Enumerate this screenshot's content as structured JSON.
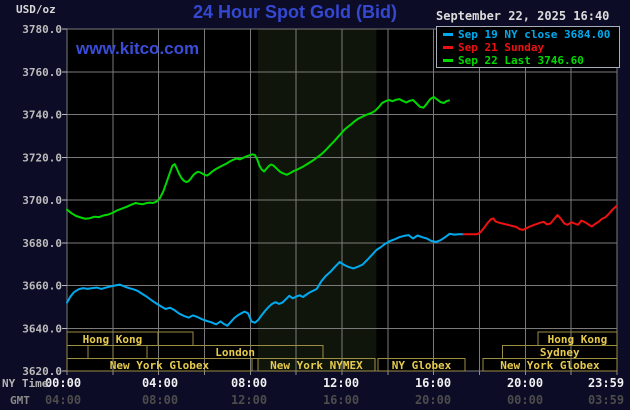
{
  "header": {
    "unit": "USD/oz",
    "title": "24 Hour Spot Gold (Bid)",
    "datetime": "September 22, 2025 16:40",
    "watermark": "www.kitco.com"
  },
  "legend": {
    "items": [
      {
        "text": "Sep 19 NY close 3684.00",
        "color": "#00aaee"
      },
      {
        "text": "Sep 21 Sunday",
        "color": "#ee1111"
      },
      {
        "text": "Sep 22 Last 3746.60",
        "color": "#00d900"
      }
    ]
  },
  "colors": {
    "background": "#0c0c26",
    "plot_background": "#000000",
    "grid": "#7a7a7a",
    "shaded_band": "#10150c",
    "session_border": "#9b8d42",
    "session_text": "#e6cb4f",
    "y_label": "#bcbcbc",
    "ny_tick_label": "#f0f0f0",
    "gmt_tick_label": "#4c4c4c",
    "title_blue": "#3448d2"
  },
  "chart_data": {
    "type": "line",
    "title": "24 Hour Spot Gold (Bid)",
    "y_axis": {
      "unit": "USD/oz",
      "min": 3620,
      "max": 3780,
      "step": 20,
      "tick_labels": [
        "3780.0",
        "3760.0",
        "3740.0",
        "3720.0",
        "3700.0",
        "3680.0",
        "3660.0",
        "3640.0",
        "3620.0"
      ]
    },
    "x_axis": {
      "hours_range": [
        0,
        24
      ],
      "rows": [
        {
          "label": "NY Time",
          "ticks": [
            "00:00",
            "04:00",
            "08:00",
            "12:00",
            "16:00",
            "20:00",
            "23:59"
          ]
        },
        {
          "label": "GMT",
          "ticks": [
            "04:00",
            "08:00",
            "12:00",
            "16:00",
            "20:00",
            "00:00",
            "03:59"
          ]
        }
      ]
    },
    "shaded_band_hours": [
      8.33,
      13.5
    ],
    "sessions": [
      {
        "row": 0,
        "from": 0.0,
        "to": 3.97,
        "label": "Hong Kong"
      },
      {
        "row": 0,
        "from": 3.97,
        "to": 5.5,
        "label": ""
      },
      {
        "row": 0,
        "from": 20.55,
        "to": 24.0,
        "label": "Hong Kong"
      },
      {
        "row": 1,
        "from": 0.0,
        "to": 0.92,
        "label": ""
      },
      {
        "row": 1,
        "from": 0.92,
        "to": 2.0,
        "label": ""
      },
      {
        "row": 1,
        "from": 2.0,
        "to": 3.5,
        "label": ""
      },
      {
        "row": 1,
        "from": 3.5,
        "to": 11.17,
        "label": "London"
      },
      {
        "row": 1,
        "from": 19.0,
        "to": 24.0,
        "label": "Sydney"
      },
      {
        "row": 2,
        "from": 0.0,
        "to": 8.07,
        "label": "New York Globex"
      },
      {
        "row": 2,
        "from": 8.33,
        "to": 13.44,
        "label": "New York NYMEX"
      },
      {
        "row": 2,
        "from": 13.57,
        "to": 17.37,
        "label": "NY Globex"
      },
      {
        "row": 2,
        "from": 18.15,
        "to": 24.0,
        "label": "New York Globex"
      }
    ],
    "series": [
      {
        "name": "Sep 19 NY close",
        "close_value": 3684.0,
        "color": "#00aaee",
        "points": [
          [
            0,
            3652
          ],
          [
            0.15,
            3654.8
          ],
          [
            0.3,
            3656.8
          ],
          [
            0.5,
            3658.2
          ],
          [
            0.7,
            3658.8
          ],
          [
            0.9,
            3658.4
          ],
          [
            1.1,
            3658.8
          ],
          [
            1.3,
            3659
          ],
          [
            1.5,
            3658.4
          ],
          [
            1.7,
            3659
          ],
          [
            1.9,
            3659.6
          ],
          [
            2.1,
            3660
          ],
          [
            2.3,
            3660.4
          ],
          [
            2.5,
            3659.6
          ],
          [
            2.7,
            3658.8
          ],
          [
            2.9,
            3658.2
          ],
          [
            3.1,
            3657.4
          ],
          [
            3.3,
            3656
          ],
          [
            3.5,
            3654.6
          ],
          [
            3.7,
            3653
          ],
          [
            3.9,
            3651.6
          ],
          [
            4.1,
            3650.2
          ],
          [
            4.3,
            3649
          ],
          [
            4.5,
            3649.6
          ],
          [
            4.7,
            3648.4
          ],
          [
            4.9,
            3646.8
          ],
          [
            5.1,
            3645.8
          ],
          [
            5.3,
            3645
          ],
          [
            5.5,
            3646
          ],
          [
            5.7,
            3645.2
          ],
          [
            5.9,
            3644.2
          ],
          [
            6.1,
            3643.4
          ],
          [
            6.3,
            3642.8
          ],
          [
            6.5,
            3641.8
          ],
          [
            6.7,
            3643.2
          ],
          [
            6.85,
            3642
          ],
          [
            7,
            3641.2
          ],
          [
            7.15,
            3643
          ],
          [
            7.3,
            3644.8
          ],
          [
            7.45,
            3646
          ],
          [
            7.6,
            3647
          ],
          [
            7.75,
            3647.8
          ],
          [
            7.9,
            3647
          ],
          [
            8.05,
            3643.2
          ],
          [
            8.2,
            3642.6
          ],
          [
            8.35,
            3644
          ],
          [
            8.5,
            3646.2
          ],
          [
            8.65,
            3648.2
          ],
          [
            8.8,
            3650
          ],
          [
            8.95,
            3651.4
          ],
          [
            9.1,
            3652.2
          ],
          [
            9.25,
            3651.4
          ],
          [
            9.4,
            3652
          ],
          [
            9.55,
            3653.6
          ],
          [
            9.7,
            3655.2
          ],
          [
            9.85,
            3654
          ],
          [
            10,
            3654.8
          ],
          [
            10.15,
            3655.4
          ],
          [
            10.3,
            3654.6
          ],
          [
            10.45,
            3655.8
          ],
          [
            10.6,
            3656.8
          ],
          [
            10.75,
            3657.6
          ],
          [
            10.9,
            3658.4
          ],
          [
            11.1,
            3662
          ],
          [
            11.3,
            3664.6
          ],
          [
            11.5,
            3666.4
          ],
          [
            11.7,
            3668.8
          ],
          [
            11.9,
            3671
          ],
          [
            12.1,
            3669.6
          ],
          [
            12.3,
            3668.6
          ],
          [
            12.5,
            3668
          ],
          [
            12.7,
            3668.8
          ],
          [
            12.9,
            3669.8
          ],
          [
            13.1,
            3672
          ],
          [
            13.3,
            3674.2
          ],
          [
            13.5,
            3676.6
          ],
          [
            13.7,
            3678
          ],
          [
            13.9,
            3679.6
          ],
          [
            14.1,
            3680.8
          ],
          [
            14.3,
            3681.6
          ],
          [
            14.5,
            3682.6
          ],
          [
            14.7,
            3683.2
          ],
          [
            14.9,
            3683.6
          ],
          [
            15.1,
            3682
          ],
          [
            15.3,
            3683.4
          ],
          [
            15.5,
            3682.6
          ],
          [
            15.7,
            3682
          ],
          [
            15.9,
            3680.8
          ],
          [
            16.1,
            3680.4
          ],
          [
            16.3,
            3681.2
          ],
          [
            16.5,
            3682.6
          ],
          [
            16.7,
            3684.2
          ],
          [
            16.9,
            3683.8
          ],
          [
            17.1,
            3684
          ],
          [
            17.3,
            3684
          ]
        ]
      },
      {
        "name": "Sep 21 Sunday",
        "color": "#ee1111",
        "points": [
          [
            17.3,
            3684
          ],
          [
            17.5,
            3684
          ],
          [
            17.7,
            3684
          ],
          [
            17.9,
            3684
          ],
          [
            18.05,
            3685
          ],
          [
            18.2,
            3687
          ],
          [
            18.35,
            3689.2
          ],
          [
            18.5,
            3691
          ],
          [
            18.6,
            3691.4
          ],
          [
            18.7,
            3690
          ],
          [
            18.85,
            3689.4
          ],
          [
            19,
            3689
          ],
          [
            19.15,
            3688.6
          ],
          [
            19.3,
            3688.2
          ],
          [
            19.45,
            3687.8
          ],
          [
            19.6,
            3687.4
          ],
          [
            19.75,
            3686.4
          ],
          [
            19.9,
            3686
          ],
          [
            20.05,
            3686.8
          ],
          [
            20.2,
            3687.6
          ],
          [
            20.35,
            3688.2
          ],
          [
            20.5,
            3688.8
          ],
          [
            20.65,
            3689.4
          ],
          [
            20.8,
            3689.8
          ],
          [
            20.95,
            3688.6
          ],
          [
            21.1,
            3689
          ],
          [
            21.25,
            3691
          ],
          [
            21.4,
            3693
          ],
          [
            21.55,
            3691.2
          ],
          [
            21.7,
            3689
          ],
          [
            21.85,
            3688.4
          ],
          [
            22,
            3689.6
          ],
          [
            22.15,
            3689
          ],
          [
            22.3,
            3688.4
          ],
          [
            22.45,
            3690.4
          ],
          [
            22.6,
            3689.6
          ],
          [
            22.75,
            3688.6
          ],
          [
            22.9,
            3687.6
          ],
          [
            23.05,
            3688.8
          ],
          [
            23.2,
            3689.8
          ],
          [
            23.35,
            3691.2
          ],
          [
            23.5,
            3692
          ],
          [
            23.65,
            3693.6
          ],
          [
            23.8,
            3695.4
          ],
          [
            23.98,
            3697.2
          ]
        ]
      },
      {
        "name": "Sep 22 Last",
        "last_value": 3746.6,
        "color": "#00d900",
        "points": [
          [
            0,
            3695.5
          ],
          [
            0.2,
            3693.8
          ],
          [
            0.4,
            3692.5
          ],
          [
            0.6,
            3691.8
          ],
          [
            0.8,
            3691.2
          ],
          [
            1,
            3691.5
          ],
          [
            1.2,
            3692.2
          ],
          [
            1.4,
            3692
          ],
          [
            1.6,
            3692.8
          ],
          [
            1.8,
            3693.2
          ],
          [
            2,
            3694
          ],
          [
            2.2,
            3695.2
          ],
          [
            2.4,
            3696
          ],
          [
            2.6,
            3696.8
          ],
          [
            2.8,
            3697.8
          ],
          [
            3,
            3698.6
          ],
          [
            3.15,
            3698.2
          ],
          [
            3.3,
            3698
          ],
          [
            3.45,
            3698.5
          ],
          [
            3.6,
            3698.8
          ],
          [
            3.75,
            3698.6
          ],
          [
            3.9,
            3699.2
          ],
          [
            4.05,
            3700.8
          ],
          [
            4.2,
            3704
          ],
          [
            4.35,
            3708.5
          ],
          [
            4.5,
            3713
          ],
          [
            4.6,
            3716
          ],
          [
            4.7,
            3716.8
          ],
          [
            4.8,
            3714.5
          ],
          [
            4.9,
            3712
          ],
          [
            5,
            3710.2
          ],
          [
            5.1,
            3709
          ],
          [
            5.2,
            3708.4
          ],
          [
            5.3,
            3708.8
          ],
          [
            5.4,
            3710
          ],
          [
            5.5,
            3711.5
          ],
          [
            5.6,
            3712.5
          ],
          [
            5.7,
            3713.2
          ],
          [
            5.8,
            3713
          ],
          [
            5.9,
            3712.4
          ],
          [
            6,
            3711.8
          ],
          [
            6.1,
            3711.4
          ],
          [
            6.2,
            3712
          ],
          [
            6.3,
            3713
          ],
          [
            6.4,
            3713.8
          ],
          [
            6.5,
            3714.5
          ],
          [
            6.65,
            3715.4
          ],
          [
            6.8,
            3716.2
          ],
          [
            6.95,
            3717
          ],
          [
            7.1,
            3718
          ],
          [
            7.25,
            3718.8
          ],
          [
            7.4,
            3719.4
          ],
          [
            7.55,
            3719
          ],
          [
            7.7,
            3719.8
          ],
          [
            7.85,
            3720.5
          ],
          [
            8,
            3721
          ],
          [
            8.1,
            3721.4
          ],
          [
            8.2,
            3721
          ],
          [
            8.3,
            3719
          ],
          [
            8.4,
            3716
          ],
          [
            8.5,
            3714.2
          ],
          [
            8.6,
            3713.4
          ],
          [
            8.7,
            3714.6
          ],
          [
            8.8,
            3715.8
          ],
          [
            8.9,
            3716.6
          ],
          [
            9,
            3716.2
          ],
          [
            9.1,
            3715.2
          ],
          [
            9.2,
            3714.2
          ],
          [
            9.3,
            3713.2
          ],
          [
            9.4,
            3712.6
          ],
          [
            9.5,
            3712.2
          ],
          [
            9.6,
            3711.8
          ],
          [
            9.7,
            3712.4
          ],
          [
            9.8,
            3713
          ],
          [
            9.9,
            3713.6
          ],
          [
            10,
            3714
          ],
          [
            10.15,
            3714.8
          ],
          [
            10.3,
            3715.6
          ],
          [
            10.45,
            3716.6
          ],
          [
            10.6,
            3717.6
          ],
          [
            10.75,
            3718.6
          ],
          [
            10.9,
            3719.8
          ],
          [
            11.05,
            3721
          ],
          [
            11.2,
            3722.4
          ],
          [
            11.35,
            3724
          ],
          [
            11.5,
            3725.8
          ],
          [
            11.65,
            3727.4
          ],
          [
            11.8,
            3729.2
          ],
          [
            11.95,
            3731
          ],
          [
            12.1,
            3732.8
          ],
          [
            12.25,
            3734.2
          ],
          [
            12.4,
            3735.4
          ],
          [
            12.55,
            3736.8
          ],
          [
            12.7,
            3738
          ],
          [
            12.85,
            3738.8
          ],
          [
            13,
            3739.6
          ],
          [
            13.15,
            3740.2
          ],
          [
            13.3,
            3740.8
          ],
          [
            13.45,
            3741.8
          ],
          [
            13.6,
            3743.4
          ],
          [
            13.75,
            3745.4
          ],
          [
            13.9,
            3746.2
          ],
          [
            14.05,
            3746.8
          ],
          [
            14.2,
            3746.2
          ],
          [
            14.35,
            3746.9
          ],
          [
            14.5,
            3747.2
          ],
          [
            14.65,
            3746.4
          ],
          [
            14.8,
            3745.6
          ],
          [
            14.95,
            3746.4
          ],
          [
            15.1,
            3746.8
          ],
          [
            15.25,
            3745.2
          ],
          [
            15.4,
            3743.6
          ],
          [
            15.55,
            3743.2
          ],
          [
            15.7,
            3745
          ],
          [
            15.85,
            3747.2
          ],
          [
            16,
            3748.2
          ],
          [
            16.15,
            3747
          ],
          [
            16.3,
            3745.8
          ],
          [
            16.45,
            3745.4
          ],
          [
            16.55,
            3746.2
          ],
          [
            16.67,
            3746.6
          ]
        ]
      }
    ]
  }
}
